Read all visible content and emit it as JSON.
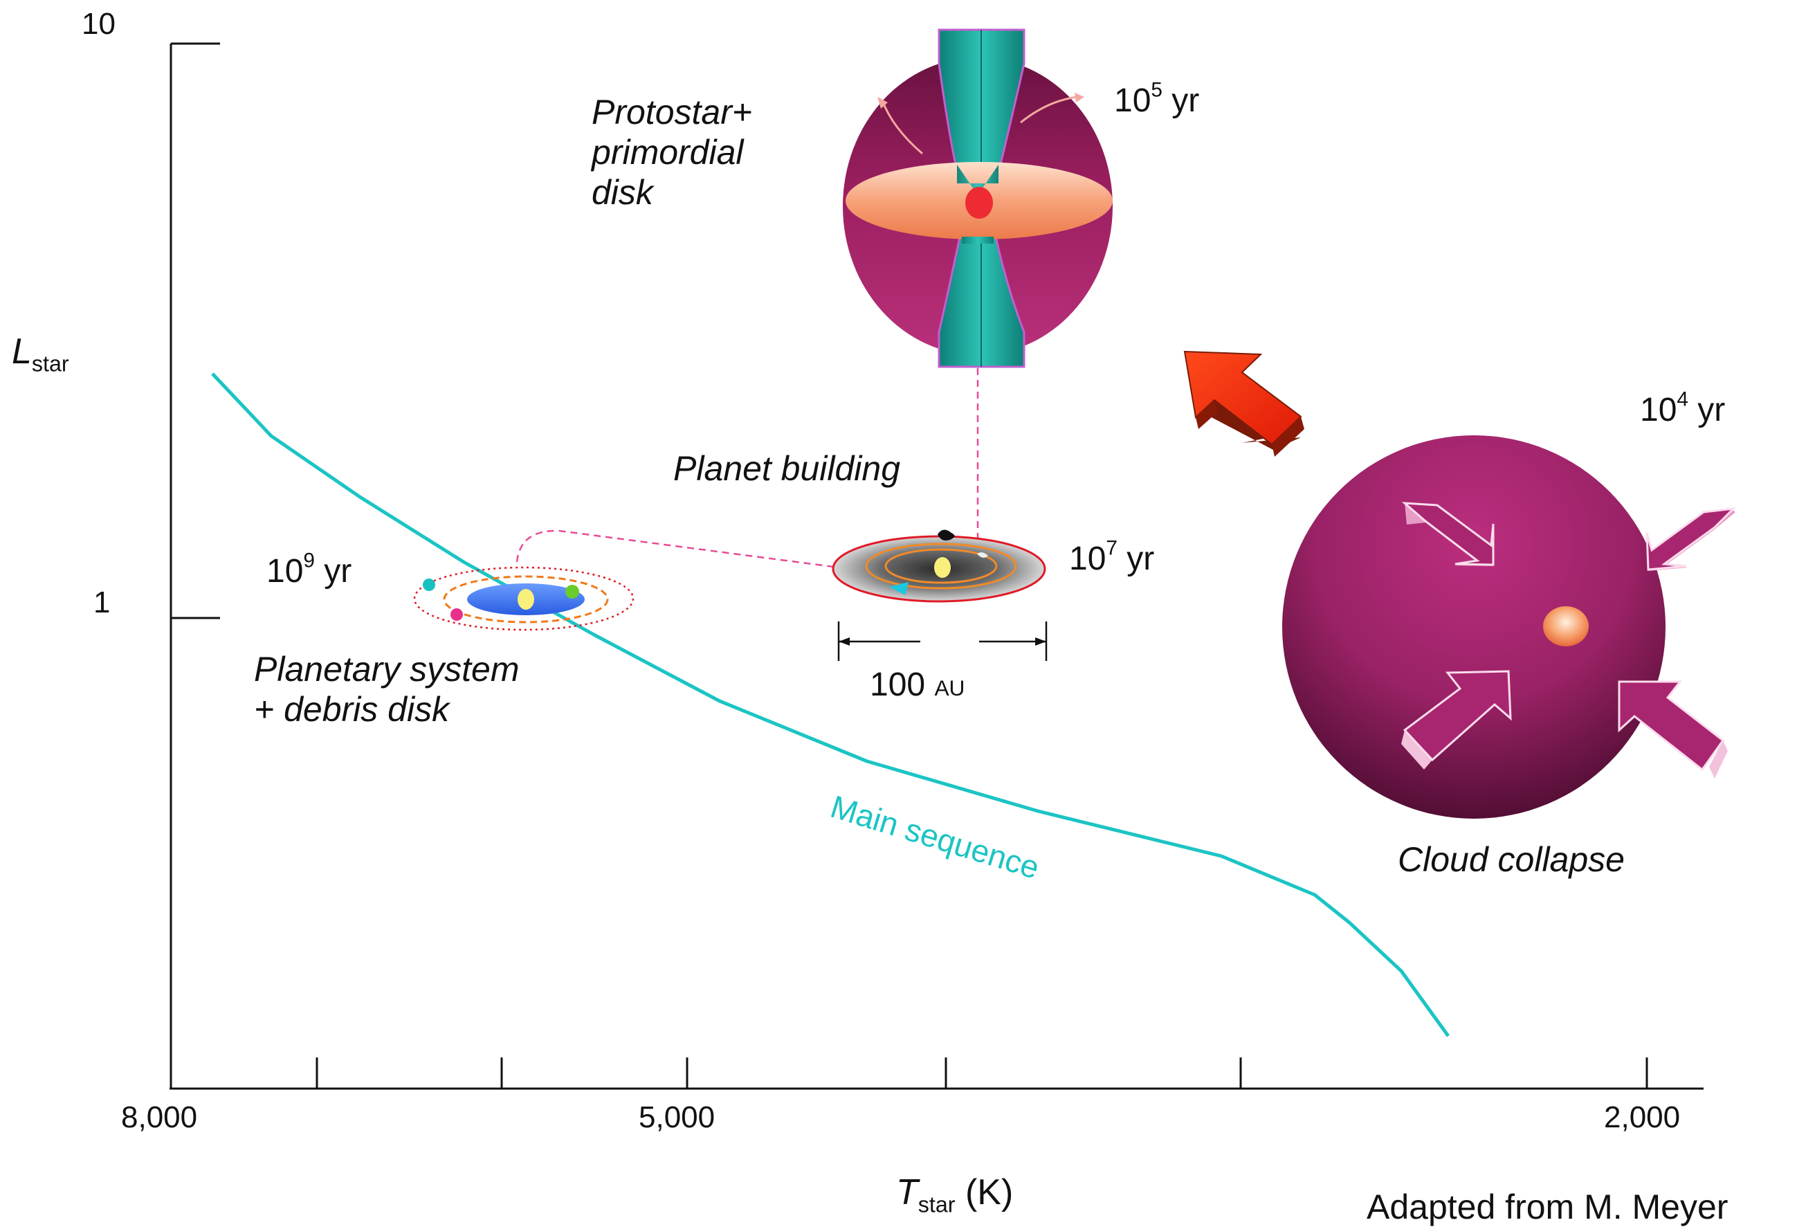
{
  "axes": {
    "y_title_main": "L",
    "y_title_sub": "star",
    "y_ticks": [
      "10",
      "1"
    ],
    "x_title_main": "T",
    "x_title_sub": "star",
    "x_title_unit": " (K)",
    "x_ticks": [
      "8,000",
      "5,000",
      "2,000"
    ]
  },
  "stages": {
    "protostar": {
      "label_line1": "Protostar+",
      "label_line2": "primordial",
      "label_line3": "disk",
      "age_base": "10",
      "age_exp": "5",
      "age_unit": " yr"
    },
    "cloud": {
      "label": "Cloud collapse",
      "age_base": "10",
      "age_exp": "4",
      "age_unit": " yr"
    },
    "planet_building": {
      "label": "Planet building",
      "age_base": "10",
      "age_exp": "7",
      "age_unit": " yr"
    },
    "planetary_system": {
      "label_line1": "Planetary system",
      "label_line2": "+ debris disk",
      "age_base": "10",
      "age_exp": "9",
      "age_unit": " yr"
    }
  },
  "scale_bar": {
    "value": "100",
    "unit": "AU"
  },
  "main_sequence_label": "Main sequence",
  "credit": "Adapted from M. Meyer",
  "colors": {
    "main_sequence": "#1cc4c4",
    "cloud": "#a5266e",
    "jet": "#1aa49a",
    "arrow": "#ee2a10",
    "dashed_link": "#e84a98"
  }
}
